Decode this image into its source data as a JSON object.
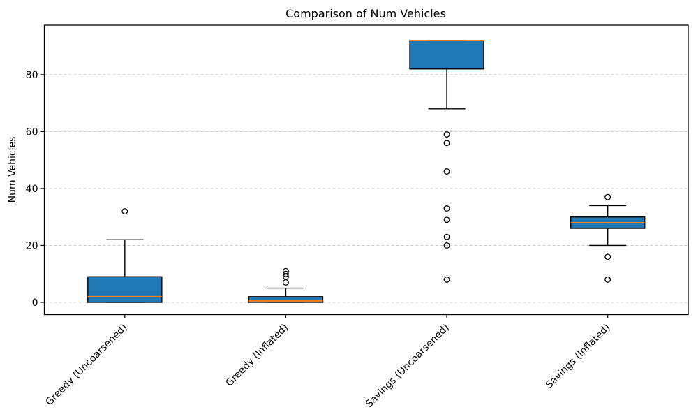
{
  "figure": {
    "background": "#ffffff"
  },
  "chart_data": {
    "type": "boxplot",
    "title": "Comparison of Num Vehicles",
    "ylabel": "Num Vehicles",
    "xlabel": "",
    "categories": [
      "Greedy (Uncoarsened)",
      "Greedy (Inflated)",
      "Savings (Uncoarsened)",
      "Savings (Inflated)"
    ],
    "series": [
      {
        "name": "Greedy (Uncoarsened)",
        "whisker_low": 0,
        "q1": 0,
        "median": 2,
        "q3": 9,
        "whisker_high": 22,
        "outliers": [
          32
        ]
      },
      {
        "name": "Greedy (Inflated)",
        "whisker_low": 0,
        "q1": 0,
        "median": 0.5,
        "q3": 2,
        "whisker_high": 5,
        "outliers": [
          7,
          9,
          10,
          11
        ]
      },
      {
        "name": "Savings (Uncoarsened)",
        "whisker_low": 68,
        "q1": 82,
        "median": 92,
        "q3": 92,
        "whisker_high": 92,
        "outliers": [
          8,
          20,
          23,
          29,
          33,
          46,
          56,
          59
        ]
      },
      {
        "name": "Savings (Inflated)",
        "whisker_low": 20,
        "q1": 26,
        "median": 28,
        "q3": 30,
        "whisker_high": 34,
        "outliers": [
          8,
          16,
          37
        ]
      }
    ],
    "yticks": [
      0,
      20,
      40,
      60,
      80
    ],
    "ylim": [
      -4.3,
      97.4
    ],
    "xlim": [
      0.5,
      4.5
    ],
    "grid": "horizontal-dashed",
    "legend": "none",
    "colors": {
      "box_fill": "#1f77b4",
      "box_edge": "#000000",
      "median": "#ff7f0e",
      "whisker": "#000000",
      "grid": "#cccccc",
      "text": "#000000"
    }
  }
}
